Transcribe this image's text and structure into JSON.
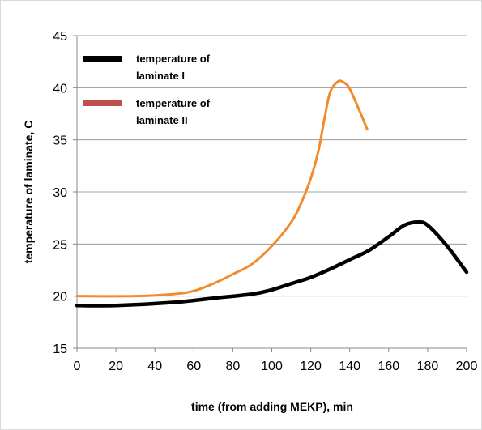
{
  "chart_data": {
    "type": "line",
    "xlabel": "time (from adding MEKP), min",
    "ylabel": "temperature of  laminate, C",
    "xlim": [
      0,
      200
    ],
    "ylim": [
      15,
      45
    ],
    "x_ticks": [
      "0",
      "20",
      "40",
      "60",
      "80",
      "100",
      "120",
      "140",
      "160",
      "180",
      "200"
    ],
    "y_ticks": [
      "15",
      "20",
      "25",
      "30",
      "35",
      "40",
      "45"
    ],
    "grid": "horizontal",
    "legend_position": "top-left",
    "series": [
      {
        "name": "temperature of laminate I",
        "legend_lines": [
          "temperature of",
          "laminate I"
        ],
        "color": "#000000",
        "legend_color": "#000000",
        "points": [
          [
            0,
            19.1
          ],
          [
            20,
            19.1
          ],
          [
            50,
            19.4
          ],
          [
            70,
            19.8
          ],
          [
            90,
            20.2
          ],
          [
            100,
            20.6
          ],
          [
            110,
            21.2
          ],
          [
            120,
            21.8
          ],
          [
            130,
            22.6
          ],
          [
            140,
            23.5
          ],
          [
            150,
            24.4
          ],
          [
            160,
            25.7
          ],
          [
            168,
            26.8
          ],
          [
            175,
            27.1
          ],
          [
            180,
            26.8
          ],
          [
            190,
            24.8
          ],
          [
            200,
            22.3
          ]
        ]
      },
      {
        "name": "temperature of laminate II",
        "legend_lines": [
          "temperature of",
          "laminate II"
        ],
        "color": "#f08c2e",
        "legend_color": "#c0504d",
        "points": [
          [
            0,
            20.0
          ],
          [
            30,
            20.0
          ],
          [
            50,
            20.2
          ],
          [
            60,
            20.5
          ],
          [
            70,
            21.2
          ],
          [
            80,
            22.1
          ],
          [
            90,
            23.1
          ],
          [
            100,
            24.8
          ],
          [
            110,
            27.1
          ],
          [
            115,
            28.9
          ],
          [
            120,
            31.3
          ],
          [
            124,
            34.0
          ],
          [
            127,
            37.0
          ],
          [
            130,
            39.6
          ],
          [
            134,
            40.6
          ],
          [
            137,
            40.5
          ],
          [
            140,
            39.9
          ],
          [
            145,
            37.8
          ],
          [
            149,
            36.0
          ]
        ]
      }
    ]
  }
}
